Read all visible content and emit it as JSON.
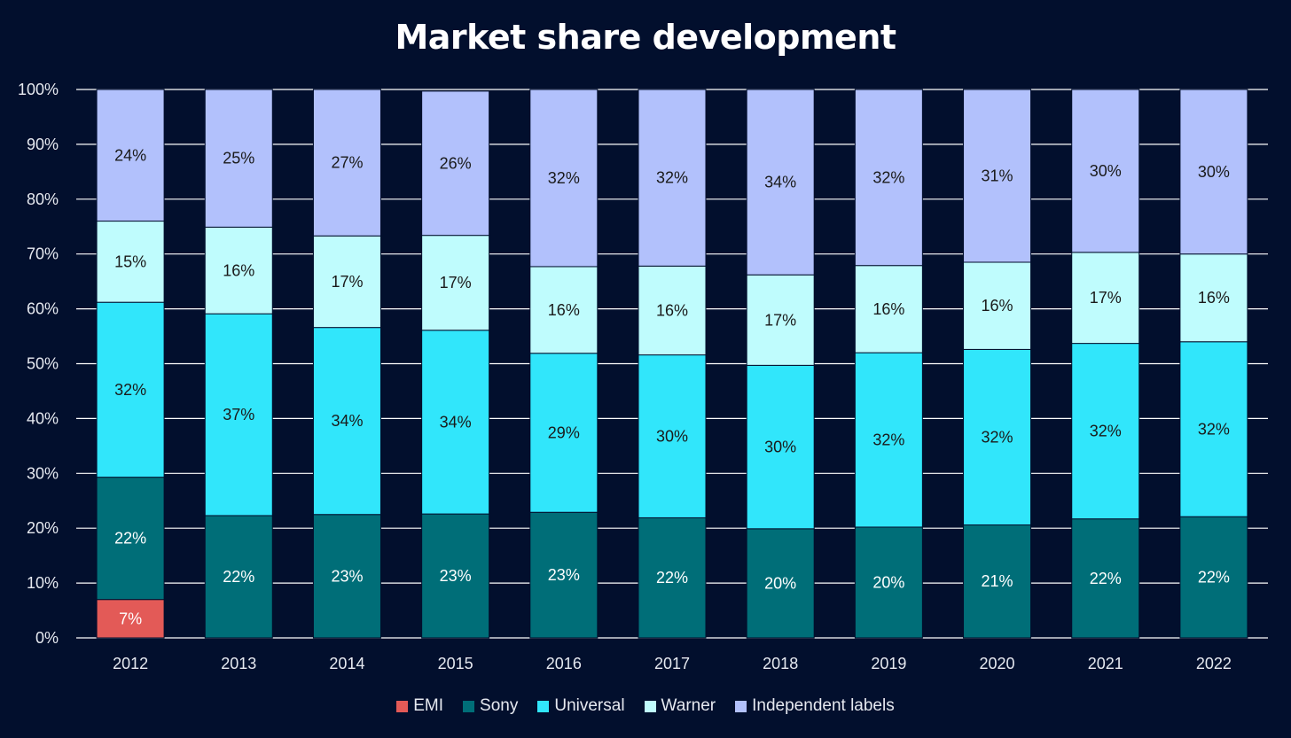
{
  "chart_data": {
    "type": "bar",
    "stacked": true,
    "title": "Market share development",
    "xlabel": "",
    "ylabel": "",
    "ylim": [
      0,
      100
    ],
    "y_ticks": [
      "0%",
      "10%",
      "20%",
      "30%",
      "40%",
      "50%",
      "60%",
      "70%",
      "80%",
      "90%",
      "100%"
    ],
    "grid": true,
    "legend_position": "bottom",
    "categories": [
      "2012",
      "2013",
      "2014",
      "2015",
      "2016",
      "2017",
      "2018",
      "2019",
      "2020",
      "2021",
      "2022"
    ],
    "series": [
      {
        "name": "EMI",
        "color": "#e35a57",
        "label_color": "#ffffff",
        "values": [
          7,
          0,
          0,
          0,
          0,
          0,
          0,
          0,
          0,
          0,
          0
        ],
        "labels": [
          "7%",
          "",
          "",
          "",
          "",
          "",
          "",
          "",
          "",
          "",
          ""
        ]
      },
      {
        "name": "Sony",
        "color": "#006e78",
        "label_color": "#ffffff",
        "values": [
          22.3,
          22.3,
          22.5,
          22.6,
          22.9,
          21.9,
          19.9,
          20.2,
          20.6,
          21.7,
          22.1
        ],
        "labels": [
          "22%",
          "22%",
          "23%",
          "23%",
          "23%",
          "22%",
          "20%",
          "20%",
          "21%",
          "22%",
          "22%"
        ]
      },
      {
        "name": "Universal",
        "color": "#31e6fb",
        "label_color": "#1a1a1a",
        "values": [
          31.9,
          36.8,
          34.1,
          33.5,
          29.0,
          29.7,
          29.8,
          31.8,
          32.0,
          32.0,
          31.9
        ],
        "labels": [
          "32%",
          "37%",
          "34%",
          "34%",
          "29%",
          "30%",
          "30%",
          "32%",
          "32%",
          "32%",
          "32%"
        ]
      },
      {
        "name": "Warner",
        "color": "#bffcfd",
        "label_color": "#1a1a1a",
        "values": [
          14.8,
          15.8,
          16.7,
          17.3,
          15.8,
          16.2,
          16.5,
          15.9,
          15.9,
          16.6,
          16.0
        ],
        "labels": [
          "15%",
          "16%",
          "17%",
          "17%",
          "16%",
          "16%",
          "17%",
          "16%",
          "16%",
          "17%",
          "16%"
        ]
      },
      {
        "name": "Independent labels",
        "color": "#b2c1fc",
        "label_color": "#1a1a1a",
        "values": [
          24.0,
          25.1,
          26.7,
          26.3,
          32.3,
          32.2,
          33.8,
          32.1,
          31.5,
          29.7,
          30.0
        ],
        "labels": [
          "24%",
          "25%",
          "27%",
          "26%",
          "32%",
          "32%",
          "34%",
          "32%",
          "31%",
          "30%",
          "30%"
        ]
      }
    ]
  }
}
